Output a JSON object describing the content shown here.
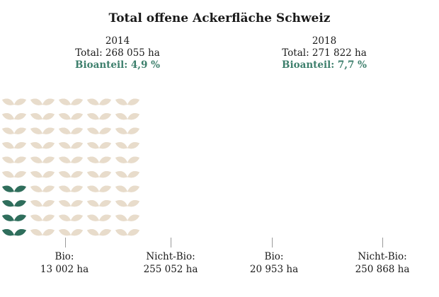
{
  "title": "Total offene Ackerfläche Schweiz",
  "colors": {
    "bio": "#2f6e5c",
    "nicht_bio": "#e8dccb",
    "accent": "#3d7f6c"
  },
  "chart_data": [
    {
      "type": "pictogram",
      "year": "2014",
      "total_label": "Total: 268 055 ha",
      "share_label": "Bioanteil: 4,9 %",
      "bio": {
        "label": "Bio:",
        "value_label": "13 002 ha",
        "value": 13002
      },
      "nicht_bio": {
        "label": "Nicht-Bio:",
        "value_label": "255 052 ha",
        "value": 255052
      },
      "bio_share": 4.9,
      "total": 268055
    },
    {
      "type": "pictogram",
      "year": "2018",
      "total_label": "Total: 271 822 ha",
      "share_label": "Bioanteil: 7,7 %",
      "bio": {
        "label": "Bio:",
        "value_label": "20 953 ha",
        "value": 20953
      },
      "nicht_bio": {
        "label": "Nicht-Bio:",
        "value_label": "250 868 ha",
        "value": 250868
      },
      "bio_share": 7.7,
      "total": 271822
    }
  ]
}
